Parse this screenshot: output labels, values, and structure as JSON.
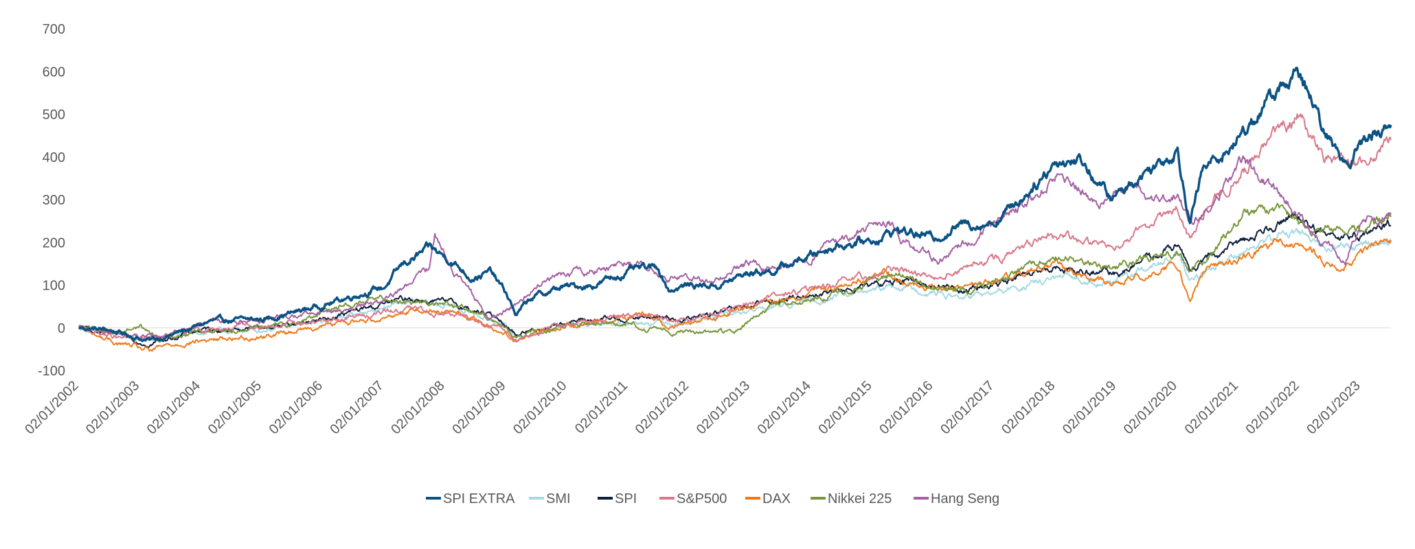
{
  "chart_data": {
    "type": "line",
    "title": "",
    "xlabel": "",
    "ylabel": "",
    "ylim": [
      -100,
      700
    ],
    "yticks": [
      -100,
      0,
      100,
      200,
      300,
      400,
      500,
      600,
      700
    ],
    "xlim": [
      "2002-01-02",
      "2023-07-01"
    ],
    "xticks": [
      "2002-01-02",
      "2003-01-02",
      "2004-01-02",
      "2005-01-02",
      "2006-01-02",
      "2007-01-02",
      "2008-01-02",
      "2009-01-02",
      "2010-01-02",
      "2011-01-02",
      "2012-01-02",
      "2013-01-02",
      "2014-01-02",
      "2015-01-02",
      "2016-01-02",
      "2017-01-02",
      "2018-01-02",
      "2019-01-02",
      "2020-01-02",
      "2021-01-02",
      "2022-01-02",
      "2023-01-02"
    ],
    "xtick_labels": [
      "02/01/2002",
      "02/01/2003",
      "02/01/2004",
      "02/01/2005",
      "02/01/2006",
      "02/01/2007",
      "02/01/2008",
      "02/01/2009",
      "02/01/2010",
      "02/01/2011",
      "02/01/2012",
      "02/01/2013",
      "02/01/2014",
      "02/01/2015",
      "02/01/2016",
      "02/01/2017",
      "02/01/2018",
      "02/01/2019",
      "02/01/2020",
      "02/01/2021",
      "02/01/2022",
      "02/01/2023"
    ],
    "grid": "zero-line only",
    "legend_position": "bottom-center",
    "series": [
      {
        "name": "SPI EXTRA",
        "color": "#0b5283",
        "points": [
          [
            "2002-01-02",
            0
          ],
          [
            "2002-07-01",
            -5
          ],
          [
            "2003-03-01",
            -30
          ],
          [
            "2003-09-01",
            -10
          ],
          [
            "2004-03-01",
            15
          ],
          [
            "2005-01-01",
            20
          ],
          [
            "2005-07-01",
            35
          ],
          [
            "2006-03-01",
            60
          ],
          [
            "2006-08-01",
            80
          ],
          [
            "2007-01-01",
            95
          ],
          [
            "2007-05-01",
            150
          ],
          [
            "2007-10-01",
            185
          ],
          [
            "2008-02-01",
            160
          ],
          [
            "2008-06-01",
            120
          ],
          [
            "2008-10-01",
            130
          ],
          [
            "2009-01-01",
            80
          ],
          [
            "2009-03-01",
            30
          ],
          [
            "2009-06-01",
            70
          ],
          [
            "2009-12-01",
            95
          ],
          [
            "2010-06-01",
            100
          ],
          [
            "2011-02-01",
            135
          ],
          [
            "2011-07-01",
            140
          ],
          [
            "2011-09-01",
            90
          ],
          [
            "2012-01-01",
            100
          ],
          [
            "2012-07-01",
            100
          ],
          [
            "2013-01-01",
            130
          ],
          [
            "2013-06-01",
            135
          ],
          [
            "2014-01-01",
            170
          ],
          [
            "2014-06-01",
            195
          ],
          [
            "2015-01-01",
            205
          ],
          [
            "2015-06-01",
            230
          ],
          [
            "2016-01-01",
            210
          ],
          [
            "2016-06-01",
            240
          ],
          [
            "2017-01-01",
            250
          ],
          [
            "2017-06-01",
            300
          ],
          [
            "2018-01-01",
            390
          ],
          [
            "2018-06-01",
            395
          ],
          [
            "2018-12-01",
            300
          ],
          [
            "2019-06-01",
            360
          ],
          [
            "2020-01-01",
            420
          ],
          [
            "2020-03-15",
            250
          ],
          [
            "2020-06-01",
            370
          ],
          [
            "2020-12-01",
            430
          ],
          [
            "2021-06-01",
            520
          ],
          [
            "2021-12-01",
            595
          ],
          [
            "2022-03-01",
            540
          ],
          [
            "2022-06-01",
            450
          ],
          [
            "2022-10-01",
            390
          ],
          [
            "2023-01-01",
            430
          ],
          [
            "2023-04-01",
            460
          ],
          [
            "2023-07-01",
            475
          ]
        ]
      },
      {
        "name": "SMI",
        "color": "#a6d9e3",
        "points": [
          [
            "2002-01-02",
            0
          ],
          [
            "2002-09-01",
            -20
          ],
          [
            "2003-03-01",
            -30
          ],
          [
            "2004-01-01",
            -10
          ],
          [
            "2005-01-01",
            -5
          ],
          [
            "2006-01-01",
            15
          ],
          [
            "2007-06-01",
            60
          ],
          [
            "2008-03-01",
            50
          ],
          [
            "2008-12-01",
            10
          ],
          [
            "2009-03-01",
            -20
          ],
          [
            "2010-01-01",
            5
          ],
          [
            "2011-06-01",
            15
          ],
          [
            "2012-01-01",
            15
          ],
          [
            "2013-01-01",
            40
          ],
          [
            "2014-01-01",
            65
          ],
          [
            "2015-01-01",
            85
          ],
          [
            "2015-06-01",
            100
          ],
          [
            "2016-06-01",
            70
          ],
          [
            "2017-01-01",
            80
          ],
          [
            "2018-01-01",
            115
          ],
          [
            "2019-01-01",
            110
          ],
          [
            "2020-01-01",
            165
          ],
          [
            "2020-03-15",
            110
          ],
          [
            "2021-01-01",
            175
          ],
          [
            "2021-12-01",
            230
          ],
          [
            "2022-06-01",
            190
          ],
          [
            "2023-01-01",
            190
          ],
          [
            "2023-07-01",
            205
          ]
        ]
      },
      {
        "name": "SPI",
        "color": "#0f1e3c",
        "points": [
          [
            "2002-01-02",
            0
          ],
          [
            "2002-09-01",
            -20
          ],
          [
            "2003-03-01",
            -35
          ],
          [
            "2004-01-01",
            -5
          ],
          [
            "2005-01-01",
            0
          ],
          [
            "2006-01-01",
            20
          ],
          [
            "2007-06-01",
            70
          ],
          [
            "2008-03-01",
            55
          ],
          [
            "2008-12-01",
            20
          ],
          [
            "2009-03-01",
            -15
          ],
          [
            "2010-01-01",
            15
          ],
          [
            "2011-06-01",
            25
          ],
          [
            "2012-01-01",
            20
          ],
          [
            "2013-01-01",
            50
          ],
          [
            "2014-01-01",
            80
          ],
          [
            "2015-01-01",
            95
          ],
          [
            "2015-06-01",
            115
          ],
          [
            "2016-06-01",
            90
          ],
          [
            "2017-01-01",
            100
          ],
          [
            "2018-01-01",
            140
          ],
          [
            "2019-01-01",
            125
          ],
          [
            "2020-01-01",
            195
          ],
          [
            "2020-03-15",
            135
          ],
          [
            "2021-01-01",
            200
          ],
          [
            "2021-12-01",
            270
          ],
          [
            "2022-06-01",
            215
          ],
          [
            "2023-01-01",
            220
          ],
          [
            "2023-07-01",
            240
          ]
        ]
      },
      {
        "name": "S&P500",
        "color": "#d8788a",
        "points": [
          [
            "2002-01-02",
            0
          ],
          [
            "2002-09-01",
            -25
          ],
          [
            "2003-03-01",
            -25
          ],
          [
            "2004-01-01",
            -5
          ],
          [
            "2005-01-01",
            5
          ],
          [
            "2006-01-01",
            15
          ],
          [
            "2007-06-01",
            45
          ],
          [
            "2008-03-01",
            30
          ],
          [
            "2008-12-01",
            0
          ],
          [
            "2009-03-01",
            -25
          ],
          [
            "2010-01-01",
            10
          ],
          [
            "2011-04-01",
            30
          ],
          [
            "2011-09-01",
            15
          ],
          [
            "2012-06-01",
            30
          ],
          [
            "2013-01-01",
            60
          ],
          [
            "2014-01-01",
            90
          ],
          [
            "2015-01-01",
            120
          ],
          [
            "2015-06-01",
            140
          ],
          [
            "2016-01-01",
            120
          ],
          [
            "2016-06-01",
            135
          ],
          [
            "2017-01-01",
            160
          ],
          [
            "2018-01-01",
            215
          ],
          [
            "2018-12-01",
            190
          ],
          [
            "2019-06-01",
            240
          ],
          [
            "2020-01-01",
            280
          ],
          [
            "2020-03-15",
            200
          ],
          [
            "2020-08-01",
            300
          ],
          [
            "2021-01-01",
            350
          ],
          [
            "2021-06-01",
            420
          ],
          [
            "2022-01-01",
            505
          ],
          [
            "2022-06-01",
            400
          ],
          [
            "2022-10-01",
            380
          ],
          [
            "2023-01-01",
            390
          ],
          [
            "2023-04-01",
            410
          ],
          [
            "2023-07-01",
            440
          ]
        ]
      },
      {
        "name": "DAX",
        "color": "#f07a1a",
        "points": [
          [
            "2002-01-02",
            0
          ],
          [
            "2002-07-01",
            -30
          ],
          [
            "2003-03-01",
            -55
          ],
          [
            "2003-09-01",
            -35
          ],
          [
            "2004-06-01",
            -25
          ],
          [
            "2005-01-01",
            -20
          ],
          [
            "2006-01-01",
            5
          ],
          [
            "2007-01-01",
            25
          ],
          [
            "2007-07-01",
            45
          ],
          [
            "2008-01-01",
            40
          ],
          [
            "2008-06-01",
            25
          ],
          [
            "2009-03-01",
            -25
          ],
          [
            "2010-01-01",
            5
          ],
          [
            "2011-04-01",
            35
          ],
          [
            "2011-09-01",
            5
          ],
          [
            "2012-06-01",
            20
          ],
          [
            "2013-01-01",
            50
          ],
          [
            "2014-01-01",
            80
          ],
          [
            "2015-04-01",
            130
          ],
          [
            "2015-09-01",
            100
          ],
          [
            "2016-02-01",
            85
          ],
          [
            "2017-01-01",
            110
          ],
          [
            "2018-01-01",
            150
          ],
          [
            "2018-12-01",
            100
          ],
          [
            "2020-01-01",
            150
          ],
          [
            "2020-03-15",
            70
          ],
          [
            "2020-06-01",
            130
          ],
          [
            "2021-01-01",
            160
          ],
          [
            "2021-09-01",
            200
          ],
          [
            "2022-03-01",
            180
          ],
          [
            "2022-09-01",
            135
          ],
          [
            "2023-01-01",
            170
          ],
          [
            "2023-07-01",
            205
          ]
        ]
      },
      {
        "name": "Nikkei 225",
        "color": "#79963a",
        "points": [
          [
            "2002-01-02",
            0
          ],
          [
            "2002-09-01",
            -10
          ],
          [
            "2003-01-01",
            5
          ],
          [
            "2003-05-01",
            -25
          ],
          [
            "2004-01-01",
            -5
          ],
          [
            "2005-01-01",
            0
          ],
          [
            "2005-09-01",
            15
          ],
          [
            "2006-03-01",
            50
          ],
          [
            "2007-02-01",
            70
          ],
          [
            "2007-09-01",
            60
          ],
          [
            "2008-01-01",
            55
          ],
          [
            "2008-10-01",
            25
          ],
          [
            "2009-03-01",
            -20
          ],
          [
            "2010-01-01",
            5
          ],
          [
            "2011-02-01",
            15
          ],
          [
            "2011-03-15",
            -5
          ],
          [
            "2012-01-01",
            -10
          ],
          [
            "2012-10-01",
            -10
          ],
          [
            "2013-05-01",
            50
          ],
          [
            "2014-01-01",
            65
          ],
          [
            "2014-09-01",
            85
          ],
          [
            "2015-06-01",
            130
          ],
          [
            "2016-02-01",
            80
          ],
          [
            "2016-09-01",
            90
          ],
          [
            "2017-06-01",
            130
          ],
          [
            "2018-01-01",
            170
          ],
          [
            "2018-12-01",
            140
          ],
          [
            "2019-06-01",
            160
          ],
          [
            "2020-01-01",
            180
          ],
          [
            "2020-03-15",
            130
          ],
          [
            "2020-09-01",
            190
          ],
          [
            "2021-02-01",
            270
          ],
          [
            "2021-09-01",
            280
          ],
          [
            "2022-03-01",
            230
          ],
          [
            "2022-09-01",
            230
          ],
          [
            "2023-01-01",
            225
          ],
          [
            "2023-07-01",
            265
          ]
        ]
      },
      {
        "name": "Hang Seng",
        "color": "#a461a3",
        "points": [
          [
            "2002-01-02",
            0
          ],
          [
            "2002-09-01",
            -15
          ],
          [
            "2003-04-01",
            -25
          ],
          [
            "2004-01-01",
            10
          ],
          [
            "2005-01-01",
            20
          ],
          [
            "2006-01-01",
            35
          ],
          [
            "2007-01-01",
            60
          ],
          [
            "2007-10-01",
            140
          ],
          [
            "2007-11-01",
            225
          ],
          [
            "2008-03-01",
            130
          ],
          [
            "2008-10-01",
            20
          ],
          [
            "2009-01-01",
            40
          ],
          [
            "2009-10-01",
            120
          ],
          [
            "2010-06-01",
            130
          ],
          [
            "2011-01-01",
            160
          ],
          [
            "2011-09-01",
            120
          ],
          [
            "2012-06-01",
            110
          ],
          [
            "2013-01-01",
            150
          ],
          [
            "2013-06-01",
            140
          ],
          [
            "2014-01-01",
            170
          ],
          [
            "2015-04-01",
            250
          ],
          [
            "2015-09-01",
            180
          ],
          [
            "2016-02-01",
            160
          ],
          [
            "2016-09-01",
            210
          ],
          [
            "2017-06-01",
            280
          ],
          [
            "2018-01-01",
            360
          ],
          [
            "2018-06-01",
            320
          ],
          [
            "2018-10-01",
            290
          ],
          [
            "2019-04-01",
            340
          ],
          [
            "2019-09-01",
            300
          ],
          [
            "2020-01-01",
            320
          ],
          [
            "2020-03-15",
            240
          ],
          [
            "2020-09-01",
            310
          ],
          [
            "2021-02-01",
            390
          ],
          [
            "2021-09-01",
            310
          ],
          [
            "2022-03-01",
            230
          ],
          [
            "2022-10-01",
            160
          ],
          [
            "2023-01-01",
            250
          ],
          [
            "2023-07-01",
            260
          ]
        ]
      }
    ]
  }
}
